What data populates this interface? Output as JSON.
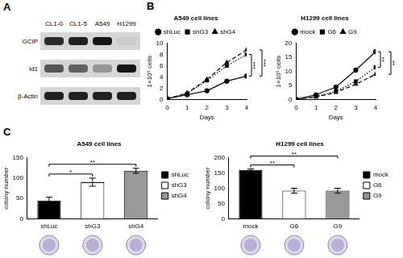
{
  "blot": {
    "panel": "A",
    "lanes": [
      "CL1-0",
      "CL1-5",
      "A549",
      "H1299"
    ],
    "rows": [
      {
        "label": "GCIP",
        "intensity": [
          0.8,
          0.85,
          0.9,
          0.05
        ]
      },
      {
        "label": "Id1",
        "intensity": [
          0.6,
          0.55,
          0.3,
          0.9
        ]
      },
      {
        "label": "β-Actin",
        "intensity": [
          0.85,
          0.85,
          0.85,
          0.85
        ]
      }
    ]
  },
  "chart_data": [
    {
      "panel": "B",
      "type": "line",
      "title": "A549 cell lines",
      "x_label": "Days",
      "y_label": "1×10⁵ cells",
      "x": [
        0,
        1,
        2,
        3,
        4
      ],
      "xlim": [
        0,
        4
      ],
      "xticks": [
        0,
        1,
        2,
        3,
        4
      ],
      "ylim": [
        0,
        10
      ],
      "yticks": [
        0,
        2,
        4,
        6,
        8,
        10
      ],
      "legend": "top",
      "series": [
        {
          "name": "shLuc",
          "color": "#000000",
          "marker": "circle",
          "line_style": "solid",
          "values": [
            0.2,
            0.9,
            1.6,
            3.3,
            4.2
          ]
        },
        {
          "name": "shG3",
          "color": "#000000",
          "marker": "square",
          "line_style": "dotted",
          "values": [
            0.2,
            1.1,
            3.4,
            6.0,
            8.0
          ]
        },
        {
          "name": "shG4",
          "color": "#000000",
          "marker": "triangle",
          "line_style": "dashed",
          "values": [
            0.2,
            1.2,
            3.6,
            6.6,
            8.8
          ]
        }
      ],
      "significance": [
        {
          "between": [
            "shLuc",
            "shG3"
          ],
          "text": "***"
        },
        {
          "between": [
            "shLuc",
            "shG4"
          ],
          "text": "***"
        }
      ]
    },
    {
      "type": "line",
      "title": "H1299 cell lines",
      "x_label": "Days",
      "y_label": "1×10⁵ cells",
      "x": [
        0,
        1,
        2,
        3,
        4
      ],
      "xlim": [
        0,
        4
      ],
      "xticks": [
        0,
        1,
        2,
        3,
        4
      ],
      "ylim": [
        0,
        20
      ],
      "yticks": [
        0,
        5,
        10,
        15,
        20
      ],
      "legend": "top",
      "series": [
        {
          "name": "mock",
          "color": "#000000",
          "marker": "circle",
          "line_style": "solid",
          "values": [
            0.2,
            1.8,
            4.5,
            10.5,
            17.0
          ]
        },
        {
          "name": "G6",
          "color": "#000000",
          "marker": "square",
          "line_style": "dotted",
          "values": [
            0.2,
            1.2,
            3.0,
            6.5,
            11.5
          ]
        },
        {
          "name": "G9",
          "color": "#000000",
          "marker": "triangle",
          "line_style": "dashed",
          "values": [
            0.2,
            1.0,
            2.6,
            5.5,
            9.0
          ]
        }
      ],
      "significance": [
        {
          "between": [
            "mock",
            "G6"
          ],
          "text": "**"
        },
        {
          "between": [
            "mock",
            "G9"
          ],
          "text": "**"
        }
      ]
    },
    {
      "panel": "C",
      "type": "bar",
      "title": "A549 cell lines",
      "y_label": "colony number",
      "categories": [
        "shLuc",
        "shG3",
        "shG4"
      ],
      "values": [
        45,
        90,
        118
      ],
      "errors": [
        8,
        10,
        6
      ],
      "colors": [
        "#000000",
        "#ffffff",
        "#999999"
      ],
      "ylim": [
        0,
        150
      ],
      "yticks": [
        0,
        50,
        100,
        150
      ],
      "legend": "right",
      "significance": [
        {
          "between": [
            "shLuc",
            "shG3"
          ],
          "text": "*"
        },
        {
          "between": [
            "shLuc",
            "shG4"
          ],
          "text": "**"
        }
      ]
    },
    {
      "type": "bar",
      "title": "H1299 cell lines",
      "y_label": "colony number",
      "categories": [
        "mock",
        "G6",
        "G9"
      ],
      "values": [
        160,
        92,
        92
      ],
      "errors": [
        3,
        8,
        8
      ],
      "colors": [
        "#000000",
        "#ffffff",
        "#999999"
      ],
      "ylim": [
        0,
        200
      ],
      "yticks": [
        0,
        50,
        100,
        150,
        200
      ],
      "legend": "right",
      "significance": [
        {
          "between": [
            "mock",
            "G6"
          ],
          "text": "**"
        },
        {
          "between": [
            "mock",
            "G9"
          ],
          "text": "**"
        }
      ]
    }
  ]
}
